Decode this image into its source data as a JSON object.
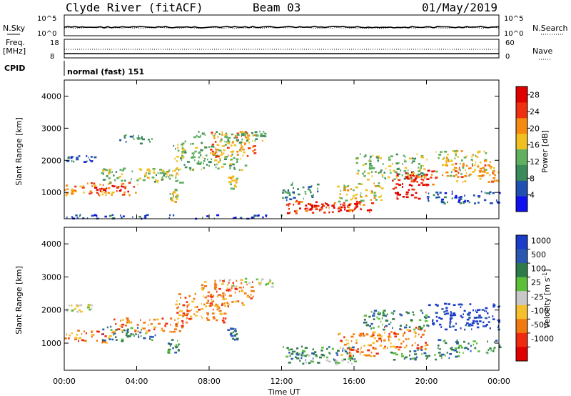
{
  "header": {
    "station": "Clyde River (fitACF)",
    "beam": "Beam 03",
    "date": "01/May/2019"
  },
  "top_panels": {
    "nsky_label": "N.Sky",
    "nsearch_label": "N.Search",
    "nsky_ticks": [
      "10^5",
      "10^0"
    ],
    "nsearch_ticks": [
      "10^5",
      "10^0"
    ],
    "freq_label_1": "Freq.",
    "freq_label_2": "[MHz]",
    "freq_ticks": [
      "18",
      "8"
    ],
    "nave_label": "Nave",
    "nave_ticks": [
      "60",
      "0"
    ],
    "cpid_label": "CPID",
    "cpid_value": "normal (fast) 151"
  },
  "chart_data": [
    {
      "type": "heatmap",
      "panel": "power",
      "ylabel": "Slant Range [km]",
      "xlabel": "Time UT",
      "x_ticks": [
        "00:00",
        "04:00",
        "08:00",
        "12:00",
        "16:00",
        "20:00",
        "00:00"
      ],
      "y_ticks": [
        1000,
        2000,
        3000,
        4000
      ],
      "xlim": [
        0,
        24
      ],
      "ylim": [
        180,
        4500
      ],
      "colorbar": {
        "label": "Power [dB]",
        "ticks": [
          4,
          8,
          12,
          16,
          20,
          24,
          28
        ],
        "range": [
          0,
          30
        ],
        "colors": [
          "#1010ee",
          "#2050b0",
          "#3a8a5a",
          "#60b060",
          "#f0c020",
          "#f58a10",
          "#ee3010",
          "#e00000"
        ]
      },
      "regions": [
        {
          "t": [
            0.0,
            4.2
          ],
          "r": [
            900,
            1300
          ],
          "level": 5
        },
        {
          "t": [
            1.5,
            3.5
          ],
          "r": [
            1000,
            1250
          ],
          "level": 7
        },
        {
          "t": [
            0.0,
            1.8
          ],
          "r": [
            1950,
            2150
          ],
          "level": 1
        },
        {
          "t": [
            2.0,
            6.5
          ],
          "r": [
            1300,
            1750
          ],
          "level": 3
        },
        {
          "t": [
            4.2,
            6.2
          ],
          "r": [
            1450,
            1750
          ],
          "level": 4
        },
        {
          "t": [
            5.8,
            6.2
          ],
          "r": [
            700,
            1100
          ],
          "level": 4
        },
        {
          "t": [
            6.0,
            10.0
          ],
          "r": [
            1700,
            2600
          ],
          "level": 3
        },
        {
          "t": [
            8.0,
            10.5
          ],
          "r": [
            2100,
            2900
          ],
          "level": 5
        },
        {
          "t": [
            8.5,
            11.0
          ],
          "r": [
            2600,
            2900
          ],
          "level": 3
        },
        {
          "t": [
            9.0,
            9.5
          ],
          "r": [
            1100,
            1500
          ],
          "level": 4
        },
        {
          "t": [
            7.0,
            11.2
          ],
          "r": [
            2700,
            2900
          ],
          "level": 3
        },
        {
          "t": [
            3.0,
            5.0
          ],
          "r": [
            2500,
            2800
          ],
          "level": 2
        },
        {
          "t": [
            12.0,
            17.0
          ],
          "r": [
            350,
            750
          ],
          "level": 6
        },
        {
          "t": [
            13.0,
            16.5
          ],
          "r": [
            400,
            650
          ],
          "level": 7
        },
        {
          "t": [
            12.0,
            14.0
          ],
          "r": [
            750,
            1300
          ],
          "level": 2
        },
        {
          "t": [
            15.0,
            17.5
          ],
          "r": [
            700,
            1300
          ],
          "level": 4
        },
        {
          "t": [
            18.0,
            20.0
          ],
          "r": [
            800,
            1600
          ],
          "level": 7
        },
        {
          "t": [
            19.0,
            20.5
          ],
          "r": [
            1200,
            1700
          ],
          "level": 6
        },
        {
          "t": [
            20.5,
            23.5
          ],
          "r": [
            1500,
            2300
          ],
          "level": 4
        },
        {
          "t": [
            21.5,
            24.0
          ],
          "r": [
            1300,
            1900
          ],
          "level": 5
        },
        {
          "t": [
            20.0,
            24.0
          ],
          "r": [
            650,
            1050
          ],
          "level": 1
        },
        {
          "t": [
            16.0,
            20.0
          ],
          "r": [
            1400,
            2200
          ],
          "level": 3
        },
        {
          "t": [
            0.0,
            12.0
          ],
          "r": [
            180,
            300
          ],
          "level": 1
        }
      ]
    },
    {
      "type": "heatmap",
      "panel": "velocity",
      "ylabel": "Slant Range [km]",
      "xlabel": "Time UT",
      "x_ticks": [
        "00:00",
        "04:00",
        "08:00",
        "12:00",
        "16:00",
        "20:00",
        "00:00"
      ],
      "y_ticks": [
        1000,
        2000,
        3000,
        4000
      ],
      "xlim": [
        0,
        24
      ],
      "ylim": [
        180,
        4500
      ],
      "colorbar": {
        "label": "Velocity [m s^-1]",
        "ticks": [
          "1000",
          "500",
          "100",
          "25",
          "-25",
          "-100",
          "-500",
          "-1000"
        ],
        "colors": [
          "#1a3cc8",
          "#2a58b0",
          "#2f7a4a",
          "#5cbf3a",
          "#c8c8c8",
          "#f5c030",
          "#f07a10",
          "#ee2a10",
          "#e00000"
        ]
      },
      "regions": [
        {
          "t": [
            0.0,
            2.5
          ],
          "r": [
            1000,
            1400
          ],
          "level": 6
        },
        {
          "t": [
            2.0,
            5.0
          ],
          "r": [
            1050,
            1500
          ],
          "level": 2
        },
        {
          "t": [
            2.5,
            6.5
          ],
          "r": [
            1300,
            1750
          ],
          "level": 6
        },
        {
          "t": [
            5.5,
            6.3
          ],
          "r": [
            700,
            1200
          ],
          "level": 2
        },
        {
          "t": [
            6.0,
            9.0
          ],
          "r": [
            1600,
            2500
          ],
          "level": 6
        },
        {
          "t": [
            7.5,
            10.5
          ],
          "r": [
            2100,
            2900
          ],
          "level": 6
        },
        {
          "t": [
            8.5,
            11.5
          ],
          "r": [
            2700,
            2950
          ],
          "level": 4
        },
        {
          "t": [
            0.0,
            1.5
          ],
          "r": [
            1900,
            2200
          ],
          "level": 4
        },
        {
          "t": [
            9.0,
            9.5
          ],
          "r": [
            1100,
            1500
          ],
          "level": 1
        },
        {
          "t": [
            12.0,
            16.0
          ],
          "r": [
            400,
            900
          ],
          "level": 2
        },
        {
          "t": [
            13.0,
            16.0
          ],
          "r": [
            350,
            650
          ],
          "level": 3
        },
        {
          "t": [
            15.0,
            17.5
          ],
          "r": [
            600,
            1300
          ],
          "level": 6
        },
        {
          "t": [
            17.0,
            20.0
          ],
          "r": [
            800,
            1500
          ],
          "level": 6
        },
        {
          "t": [
            16.5,
            20.0
          ],
          "r": [
            1400,
            2000
          ],
          "level": 2
        },
        {
          "t": [
            20.0,
            24.0
          ],
          "r": [
            1400,
            2200
          ],
          "level": 0
        },
        {
          "t": [
            20.5,
            24.0
          ],
          "r": [
            700,
            1100
          ],
          "level": 2
        },
        {
          "t": [
            18.0,
            22.0
          ],
          "r": [
            500,
            800
          ],
          "level": 2
        }
      ]
    }
  ]
}
